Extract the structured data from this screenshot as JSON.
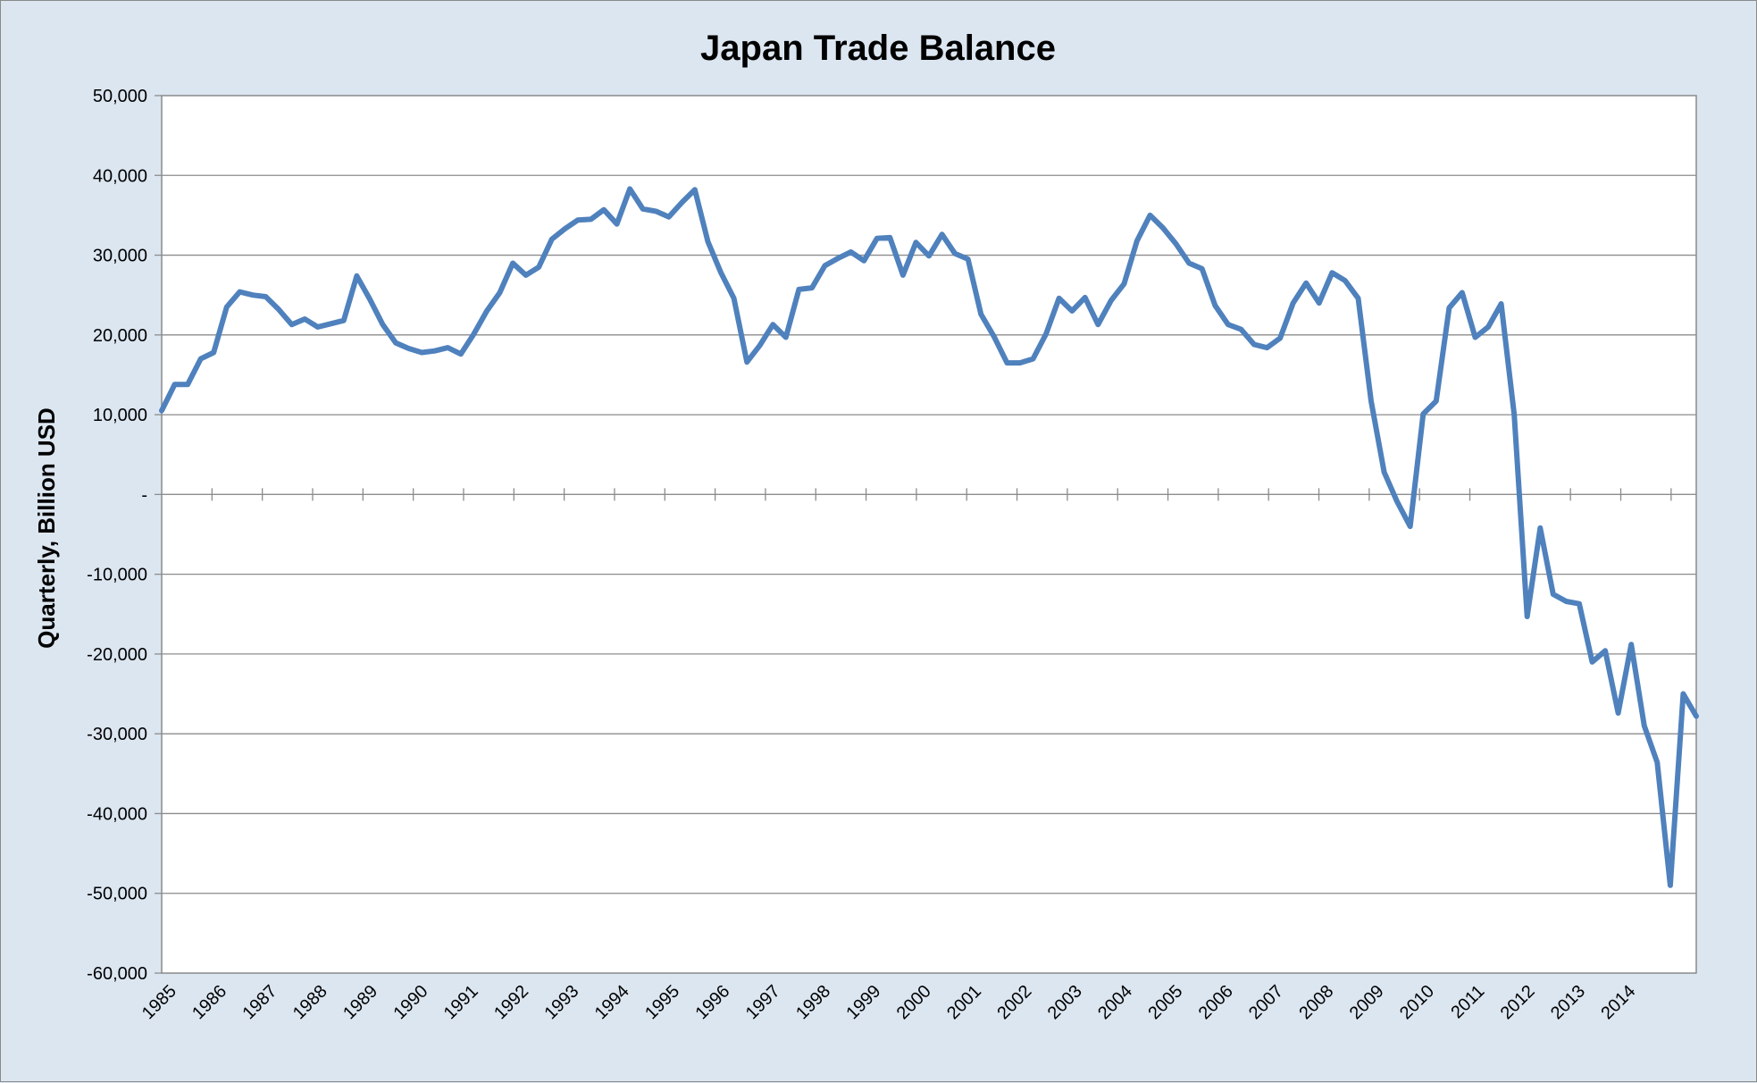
{
  "chart_data": {
    "type": "line",
    "title": "Japan Trade Balance",
    "xlabel": "",
    "ylabel": "Quarterly, Billion USD",
    "ylim": [
      -60000,
      50000
    ],
    "y_ticks": [
      50000,
      40000,
      30000,
      20000,
      10000,
      0,
      -10000,
      -20000,
      -30000,
      -40000,
      -50000,
      -60000
    ],
    "y_tick_labels": [
      "50,000",
      "40,000",
      "30,000",
      "20,000",
      "10,000",
      "-",
      "-10,000",
      "-20,000",
      "-30,000",
      "-40,000",
      "-50,000",
      "-60,000"
    ],
    "x_tick_labels": [
      "1985",
      "1986",
      "1987",
      "1988",
      "1989",
      "1990",
      "1991",
      "1992",
      "1993",
      "1994",
      "1995",
      "1996",
      "1997",
      "1998",
      "1999",
      "2000",
      "2001",
      "2002",
      "2003",
      "2004",
      "2005",
      "2006",
      "2007",
      "2008",
      "2009",
      "2010",
      "2011",
      "2012",
      "2013",
      "2014"
    ],
    "x_interval": "quarterly",
    "grid": "horizontal",
    "legend": "none",
    "line_color": "#4f81bd",
    "series": [
      {
        "values": [
          10500,
          13800,
          13800,
          17000,
          17800,
          23500,
          25400,
          25000,
          24800,
          23200,
          21300,
          22000,
          21000,
          21400,
          21800,
          27400,
          24500,
          21300,
          19000,
          18300,
          17800,
          18000,
          18400,
          17600,
          20100,
          23000,
          25300,
          29000,
          27500,
          28500,
          32000,
          33300,
          34400,
          34500,
          35700,
          33900,
          38300,
          35800,
          35500,
          34800,
          36600,
          38200,
          31700,
          27800,
          24600,
          16600,
          18700,
          21300,
          19700,
          25700,
          25900,
          28700,
          29600,
          30400,
          29300,
          32100,
          32200,
          27500,
          31600,
          29900,
          32600,
          30200,
          29500,
          22600,
          19800,
          16500,
          16500,
          17000,
          20100,
          24600,
          23000,
          24700,
          21300,
          24300,
          26400,
          31800,
          35000,
          33400,
          31400,
          29000,
          28300,
          23700,
          21300,
          20700,
          18800,
          18400,
          19600,
          24000,
          26500,
          24000,
          27800,
          26800,
          24600,
          11700,
          2800,
          -900,
          -4000,
          10100,
          11700,
          23400,
          25300,
          19700,
          21000,
          23900,
          10000,
          -15300,
          -4200,
          -12500,
          -13400,
          -13700,
          -21000,
          -19600,
          -27400,
          -18800,
          -29000,
          -33600,
          -49000,
          -25000,
          -27800
        ]
      }
    ]
  }
}
